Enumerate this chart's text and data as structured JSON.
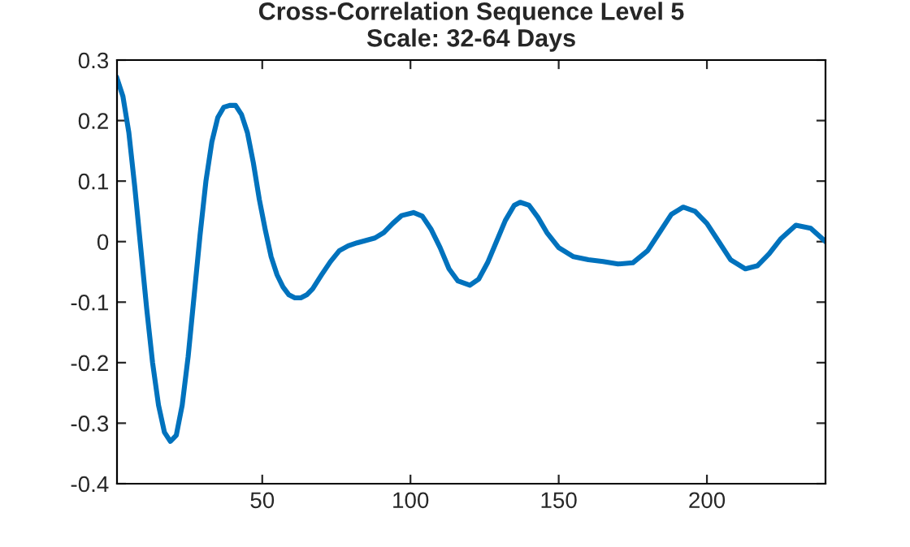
{
  "chart_data": {
    "type": "line",
    "title": "Cross-Correlation Sequence Level 5\nScale: 32-64 Days",
    "xlim": [
      1,
      240
    ],
    "ylim": [
      -0.4,
      0.3
    ],
    "xticks": [
      50,
      100,
      150,
      200
    ],
    "yticks": [
      -0.4,
      -0.3,
      -0.2,
      -0.1,
      0,
      0.1,
      0.2,
      0.3
    ],
    "grid": false,
    "legend": false,
    "series": [
      {
        "color": "#0072bd",
        "x": [
          1,
          3,
          5,
          7,
          9,
          11,
          13,
          15,
          17,
          19,
          21,
          23,
          25,
          27,
          29,
          31,
          33,
          35,
          37,
          39,
          41,
          43,
          45,
          47,
          49,
          51,
          53,
          55,
          57,
          59,
          61,
          63,
          65,
          67,
          70,
          73,
          76,
          79,
          82,
          85,
          88,
          91,
          94,
          97,
          101,
          104,
          107,
          110,
          113,
          116,
          120,
          123,
          126,
          129,
          132,
          135,
          137,
          140,
          143,
          146,
          150,
          155,
          160,
          165,
          170,
          175,
          180,
          184,
          188,
          192,
          196,
          200,
          204,
          208,
          213,
          217,
          221,
          225,
          230,
          235,
          240
        ],
        "values": [
          0.27,
          0.24,
          0.18,
          0.09,
          -0.01,
          -0.11,
          -0.2,
          -0.27,
          -0.315,
          -0.33,
          -0.32,
          -0.27,
          -0.19,
          -0.09,
          0.01,
          0.1,
          0.165,
          0.205,
          0.222,
          0.225,
          0.225,
          0.21,
          0.18,
          0.13,
          0.07,
          0.02,
          -0.025,
          -0.055,
          -0.075,
          -0.088,
          -0.093,
          -0.093,
          -0.088,
          -0.078,
          -0.055,
          -0.033,
          -0.015,
          -0.007,
          -0.002,
          0.002,
          0.006,
          0.015,
          0.03,
          0.043,
          0.048,
          0.042,
          0.02,
          -0.01,
          -0.045,
          -0.065,
          -0.072,
          -0.062,
          -0.035,
          0.0,
          0.035,
          0.06,
          0.065,
          0.06,
          0.04,
          0.015,
          -0.01,
          -0.025,
          -0.03,
          -0.033,
          -0.037,
          -0.035,
          -0.015,
          0.015,
          0.045,
          0.057,
          0.05,
          0.03,
          0.0,
          -0.03,
          -0.045,
          -0.04,
          -0.02,
          0.005,
          0.027,
          0.022,
          0.0
        ]
      }
    ]
  }
}
